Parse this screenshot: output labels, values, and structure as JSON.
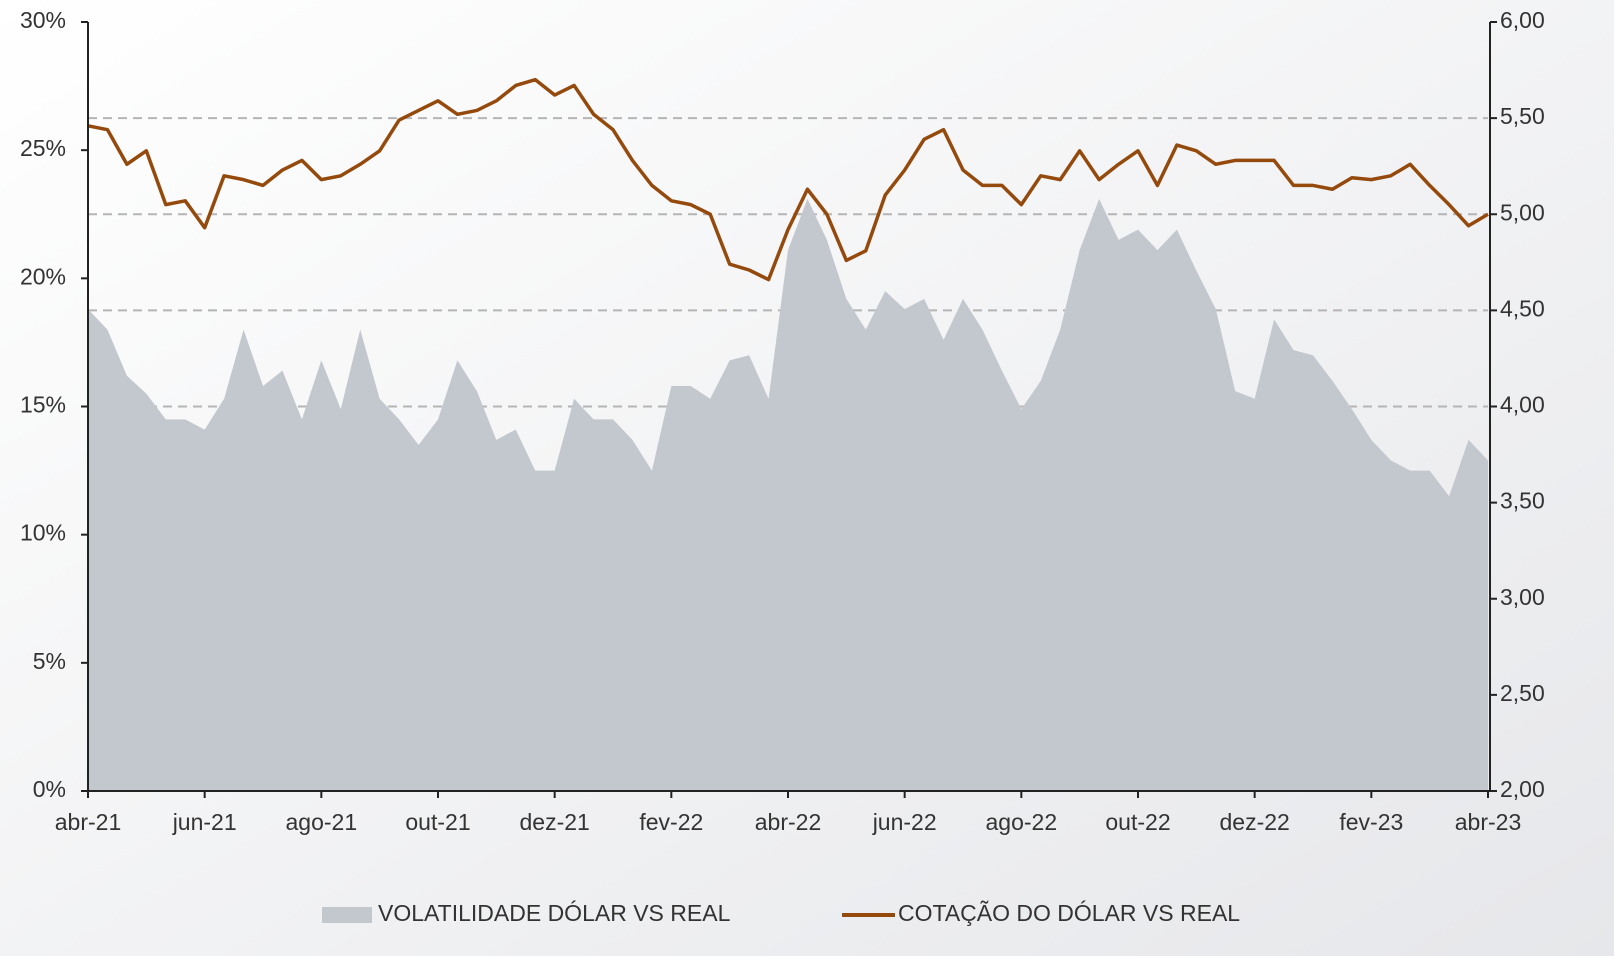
{
  "chart_data": {
    "type": "area-line",
    "categories": [
      "abr-21",
      null,
      null,
      null,
      null,
      null,
      "jun-21",
      null,
      null,
      null,
      null,
      null,
      "ago-21",
      null,
      null,
      null,
      null,
      null,
      "out-21",
      null,
      null,
      null,
      null,
      null,
      "dez-21",
      null,
      null,
      null,
      null,
      null,
      "fev-22",
      null,
      null,
      null,
      null,
      null,
      "abr-22",
      null,
      null,
      null,
      null,
      null,
      "jun-22",
      null,
      null,
      null,
      null,
      null,
      "ago-22",
      null,
      null,
      null,
      null,
      null,
      "out-22",
      null,
      null,
      null,
      null,
      null,
      "dez-22",
      null,
      null,
      null,
      null,
      null,
      "fev-23",
      null,
      null,
      null,
      null,
      null,
      "abr-23"
    ],
    "series": [
      {
        "name": "VOLATILIDADE DÓLAR VS REAL",
        "type": "area",
        "color": "#c3c7ce",
        "axis": "y",
        "values": [
          18.8,
          18.0,
          16.2,
          15.5,
          14.5,
          14.5,
          14.1,
          15.3,
          18.0,
          15.8,
          16.4,
          14.5,
          16.8,
          14.9,
          18.0,
          15.3,
          14.5,
          13.5,
          14.5,
          16.8,
          15.6,
          13.7,
          14.1,
          12.5,
          12.5,
          15.3,
          14.5,
          14.5,
          13.7,
          12.5,
          15.8,
          15.8,
          15.3,
          16.8,
          17.0,
          15.3,
          21.1,
          23.1,
          21.5,
          19.2,
          18.0,
          19.5,
          18.8,
          19.2,
          17.6,
          19.2,
          18.0,
          16.4,
          14.9,
          16.0,
          18.0,
          21.1,
          23.1,
          21.5,
          21.9,
          21.1,
          21.9,
          20.3,
          18.8,
          15.6,
          15.3,
          18.4,
          17.2,
          17.0,
          16.0,
          14.9,
          13.7,
          12.9,
          12.5,
          12.5,
          11.5,
          13.7,
          12.9
        ]
      },
      {
        "name": "COTAÇÃO DO DÓLAR VS REAL",
        "type": "line",
        "color": "#954a0d",
        "axis": "y2",
        "values": [
          5.46,
          5.44,
          5.26,
          5.33,
          5.05,
          5.07,
          4.93,
          5.2,
          5.18,
          5.15,
          5.23,
          5.28,
          5.18,
          5.2,
          5.26,
          5.33,
          5.49,
          5.54,
          5.59,
          5.52,
          5.54,
          5.59,
          5.67,
          5.7,
          5.62,
          5.67,
          5.52,
          5.44,
          5.28,
          5.15,
          5.07,
          5.05,
          5.0,
          4.74,
          4.71,
          4.66,
          4.92,
          5.13,
          5.0,
          4.76,
          4.81,
          5.1,
          5.23,
          5.39,
          5.44,
          5.23,
          5.15,
          5.15,
          5.05,
          5.2,
          5.18,
          5.33,
          5.18,
          5.26,
          5.33,
          5.15,
          5.36,
          5.33,
          5.26,
          5.28,
          5.28,
          5.28,
          5.15,
          5.15,
          5.13,
          5.19,
          5.18,
          5.2,
          5.26,
          5.15,
          5.05,
          4.94,
          5.0
        ]
      }
    ],
    "ylim": [
      0,
      30
    ],
    "yticks": [
      {
        "value": 0,
        "label": "0%"
      },
      {
        "value": 5,
        "label": "5%"
      },
      {
        "value": 10,
        "label": "10%"
      },
      {
        "value": 15,
        "label": "15%"
      },
      {
        "value": 20,
        "label": "20%"
      },
      {
        "value": 25,
        "label": "25%"
      },
      {
        "value": 30,
        "label": "30%"
      }
    ],
    "y2lim": [
      2,
      6
    ],
    "y2ticks": [
      {
        "value": 2,
        "label": "2,00"
      },
      {
        "value": 2.5,
        "label": "2,50"
      },
      {
        "value": 3,
        "label": "3,00"
      },
      {
        "value": 3.5,
        "label": "3,50"
      },
      {
        "value": 4,
        "label": "4,00"
      },
      {
        "value": 4.5,
        "label": "4,50"
      },
      {
        "value": 5,
        "label": "5,00"
      },
      {
        "value": 5.5,
        "label": "5,50"
      },
      {
        "value": 6,
        "label": "6,00"
      }
    ],
    "grid": "y2",
    "legend": "bottom"
  }
}
